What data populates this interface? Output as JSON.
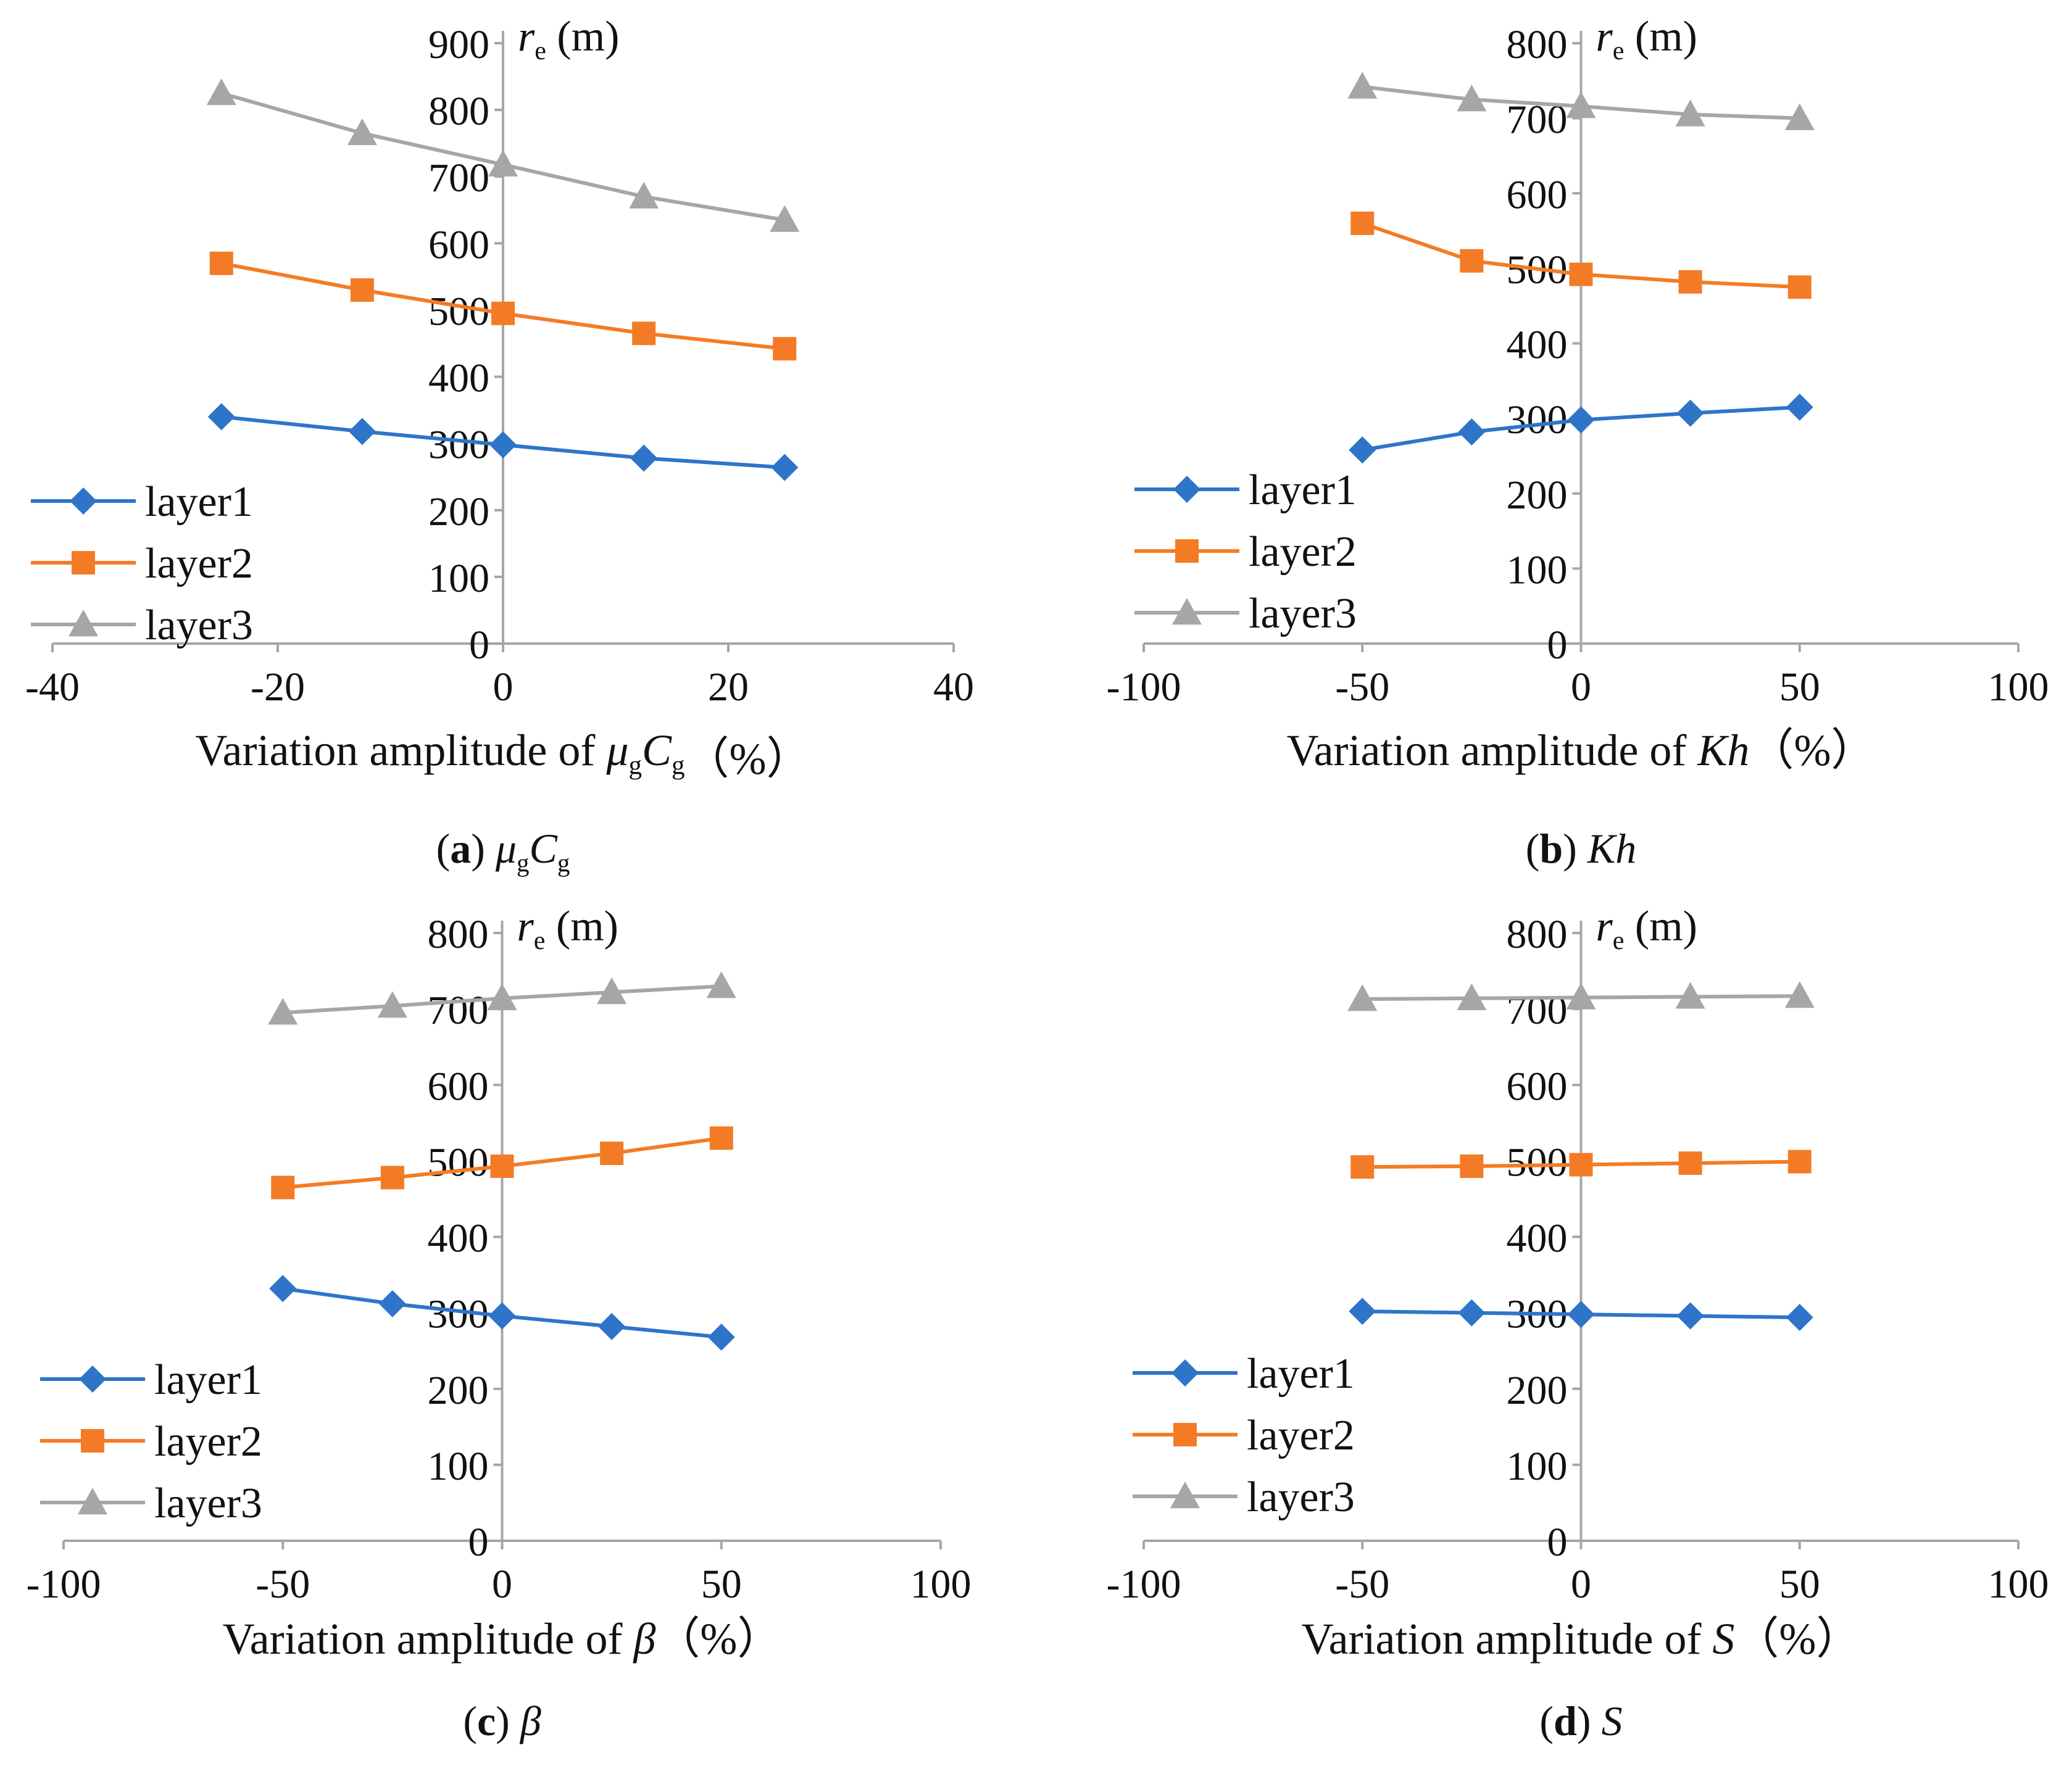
{
  "colors": {
    "layer1": "#2e75c9",
    "layer2": "#f47b25",
    "layer3": "#a6a6a6",
    "axis": "#a6a6a6",
    "text": "#111111"
  },
  "chart_data": [
    {
      "type": "line",
      "panel_letter": "a",
      "caption_symbol": "μgCg",
      "xlabel_prefix": "Variation amplitude of ",
      "xlabel_symbol": "μgCg",
      "xlabel_suffix": "（%）",
      "ylabel": "re (m)",
      "xlim": [
        -40,
        40
      ],
      "ylim": [
        0,
        900
      ],
      "xticks": [
        -40,
        -20,
        0,
        20,
        40
      ],
      "yticks": [
        0,
        100,
        200,
        300,
        400,
        500,
        600,
        700,
        800,
        900
      ],
      "x": [
        -25,
        -12.5,
        0,
        12.5,
        25
      ],
      "series": [
        {
          "name": "layer1",
          "marker": "diamond",
          "values": [
            340,
            318,
            298,
            278,
            264
          ]
        },
        {
          "name": "layer2",
          "marker": "square",
          "values": [
            570,
            530,
            495,
            465,
            442
          ]
        },
        {
          "name": "layer3",
          "marker": "triangle",
          "values": [
            825,
            765,
            718,
            670,
            635
          ]
        }
      ]
    },
    {
      "type": "line",
      "panel_letter": "b",
      "caption_symbol": "Kh",
      "xlabel_prefix": "Variation amplitude of ",
      "xlabel_symbol": "Kh",
      "xlabel_suffix": "（%）",
      "ylabel": "re (m)",
      "xlim": [
        -100,
        100
      ],
      "ylim": [
        0,
        800
      ],
      "xticks": [
        -100,
        -50,
        0,
        50,
        100
      ],
      "yticks": [
        0,
        100,
        200,
        300,
        400,
        500,
        600,
        700,
        800
      ],
      "x": [
        -50,
        -25,
        0,
        25,
        50
      ],
      "series": [
        {
          "name": "layer1",
          "marker": "diamond",
          "values": [
            258,
            282,
            298,
            307,
            315
          ]
        },
        {
          "name": "layer2",
          "marker": "square",
          "values": [
            560,
            510,
            492,
            482,
            475
          ]
        },
        {
          "name": "layer3",
          "marker": "triangle",
          "values": [
            742,
            725,
            716,
            705,
            700
          ]
        }
      ]
    },
    {
      "type": "line",
      "panel_letter": "c",
      "caption_symbol": "β",
      "xlabel_prefix": "Variation amplitude of ",
      "xlabel_symbol": "β",
      "xlabel_suffix": "（%）",
      "ylabel": "re (m)",
      "xlim": [
        -100,
        100
      ],
      "ylim": [
        0,
        800
      ],
      "xticks": [
        -100,
        -50,
        0,
        50,
        100
      ],
      "yticks": [
        0,
        100,
        200,
        300,
        400,
        500,
        600,
        700,
        800
      ],
      "x": [
        -50,
        -25,
        0,
        25,
        50
      ],
      "series": [
        {
          "name": "layer1",
          "marker": "diamond",
          "values": [
            332,
            312,
            296,
            282,
            268
          ]
        },
        {
          "name": "layer2",
          "marker": "square",
          "values": [
            465,
            478,
            493,
            510,
            530
          ]
        },
        {
          "name": "layer3",
          "marker": "triangle",
          "values": [
            695,
            704,
            714,
            722,
            730
          ]
        }
      ]
    },
    {
      "type": "line",
      "panel_letter": "d",
      "caption_symbol": "S",
      "xlabel_prefix": "Variation amplitude of ",
      "xlabel_symbol": "S",
      "xlabel_suffix": "（%）",
      "ylabel": "re (m)",
      "xlim": [
        -100,
        100
      ],
      "ylim": [
        0,
        800
      ],
      "xticks": [
        -100,
        -50,
        0,
        50,
        100
      ],
      "yticks": [
        0,
        100,
        200,
        300,
        400,
        500,
        600,
        700,
        800
      ],
      "x": [
        -50,
        -25,
        0,
        25,
        50
      ],
      "series": [
        {
          "name": "layer1",
          "marker": "diamond",
          "values": [
            302,
            300,
            298,
            296,
            294
          ]
        },
        {
          "name": "layer2",
          "marker": "square",
          "values": [
            492,
            493,
            495,
            497,
            499
          ]
        },
        {
          "name": "layer3",
          "marker": "triangle",
          "values": [
            713,
            714,
            715,
            716,
            717
          ]
        }
      ]
    }
  ]
}
